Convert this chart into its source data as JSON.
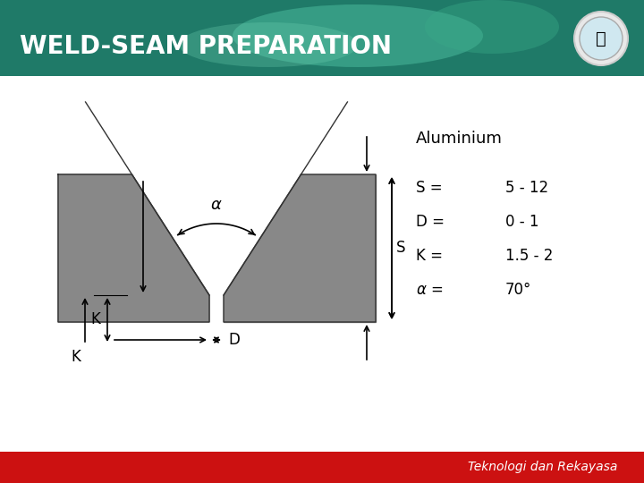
{
  "title": "WELD-SEAM PREPARATION",
  "footer": "Teknologi dan Rekayasa",
  "header_bg_color": "#2a8c7a",
  "footer_bg_color": "#cc1111",
  "bg_color": "#f0f0f0",
  "plate_color": "#888888",
  "annotations": {
    "material": "Aluminium",
    "lines": [
      {
        "label": "S =",
        "value": "5 - 12"
      },
      {
        "label": "D =",
        "value": "0 - 1"
      },
      {
        "label": "K =",
        "value": "1.5 - 2"
      },
      {
        "label": "α =",
        "value": "70°"
      }
    ]
  }
}
